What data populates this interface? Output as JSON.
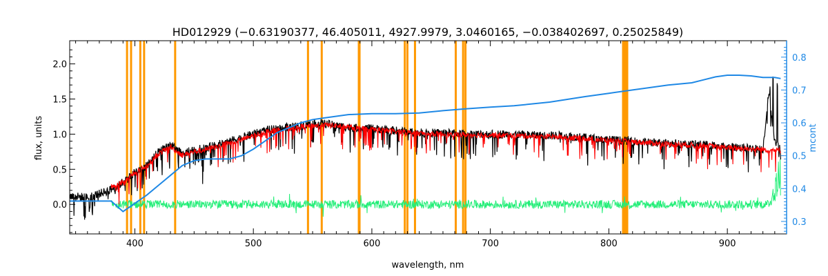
{
  "chart_data": {
    "type": "line",
    "title": "HD012929   (−0.63190377, 46.405011, 4927.9979, 3.0460165, −0.038402697, 0.25025849)",
    "xlabel": "wavelength, nm",
    "ylabel": "flux, units",
    "ylabel_right": "mcont",
    "xlim": [
      345,
      950
    ],
    "ylim": [
      -0.42,
      2.33
    ],
    "ylim_right": [
      0.262,
      0.85
    ],
    "x_ticks": [
      400,
      500,
      600,
      700,
      800,
      900
    ],
    "y_ticks": [
      0.0,
      0.5,
      1.0,
      1.5,
      2.0
    ],
    "y_tick_labels": [
      "0.0",
      "0.5",
      "1.0",
      "1.5",
      "2.0"
    ],
    "y_right_ticks": [
      0.3,
      0.4,
      0.5,
      0.6,
      0.7,
      0.8
    ],
    "y_right_tick_labels": [
      "0.3",
      "0.4",
      "0.5",
      "0.6",
      "0.7",
      "0.8"
    ],
    "grid": false,
    "colors": {
      "observed": "#000000",
      "model": "#ff0000",
      "residual": "#22ee77",
      "continuum": "#1e88e5",
      "masks": "#ff9900",
      "right_axis": "#1e88e5"
    },
    "mask_lines": [
      393.4,
      396.8,
      404.6,
      407.8,
      434.0,
      546.1,
      557.7,
      589.0,
      589.6,
      627.8,
      630.0,
      636.4,
      670.8,
      677.0,
      679.0,
      812.0,
      813.0,
      814.5,
      815.5
    ],
    "continuum": {
      "axis": "right",
      "x": [
        345,
        380,
        390,
        400,
        410,
        420,
        430,
        440,
        450,
        460,
        470,
        480,
        490,
        500,
        510,
        520,
        530,
        540,
        550,
        560,
        570,
        580,
        600,
        620,
        640,
        660,
        680,
        700,
        720,
        750,
        780,
        800,
        820,
        850,
        870,
        890,
        900,
        910,
        920,
        930,
        940,
        945
      ],
      "y": [
        0.362,
        0.362,
        0.33,
        0.355,
        0.38,
        0.41,
        0.44,
        0.47,
        0.485,
        0.49,
        0.49,
        0.49,
        0.5,
        0.52,
        0.545,
        0.57,
        0.585,
        0.6,
        0.61,
        0.615,
        0.62,
        0.625,
        0.628,
        0.628,
        0.63,
        0.637,
        0.643,
        0.648,
        0.652,
        0.663,
        0.68,
        0.69,
        0.7,
        0.715,
        0.722,
        0.74,
        0.745,
        0.745,
        0.743,
        0.738,
        0.738,
        0.735
      ]
    },
    "observed": {
      "axis": "left",
      "x": [
        345,
        360,
        375,
        385,
        392,
        400,
        410,
        420,
        430,
        440,
        450,
        460,
        470,
        480,
        490,
        500,
        510,
        520,
        530,
        540,
        550,
        560,
        570,
        580,
        590,
        600,
        620,
        640,
        660,
        680,
        700,
        720,
        740,
        760,
        780,
        800,
        820,
        840,
        860,
        880,
        900,
        920,
        930,
        935,
        940,
        945
      ],
      "y": [
        0.12,
        0.1,
        0.18,
        0.25,
        0.35,
        0.45,
        0.55,
        0.75,
        0.85,
        0.72,
        0.78,
        0.8,
        0.85,
        0.9,
        0.95,
        1.0,
        1.05,
        1.08,
        1.1,
        1.12,
        1.15,
        1.15,
        1.12,
        1.1,
        1.08,
        1.08,
        1.05,
        1.02,
        1.02,
        1.0,
        1.0,
        1.0,
        0.98,
        0.98,
        0.95,
        0.92,
        0.9,
        0.88,
        0.86,
        0.85,
        0.82,
        0.8,
        0.78,
        1.6,
        0.9,
        0.78
      ]
    },
    "model": {
      "axis": "left",
      "x": [
        380,
        392,
        400,
        410,
        420,
        430,
        440,
        450,
        460,
        470,
        480,
        490,
        500,
        510,
        520,
        530,
        540,
        550,
        560,
        570,
        580,
        590,
        600,
        620,
        640,
        660,
        680,
        700,
        720,
        740,
        760,
        780,
        800,
        820,
        840,
        860,
        880,
        900,
        920,
        945
      ],
      "y": [
        0.25,
        0.33,
        0.45,
        0.55,
        0.72,
        0.82,
        0.7,
        0.75,
        0.78,
        0.83,
        0.88,
        0.92,
        0.98,
        1.03,
        1.06,
        1.08,
        1.1,
        1.12,
        1.13,
        1.12,
        1.1,
        1.08,
        1.07,
        1.04,
        1.01,
        1.0,
        0.99,
        0.99,
        0.98,
        0.97,
        0.96,
        0.94,
        0.91,
        0.89,
        0.87,
        0.85,
        0.84,
        0.81,
        0.79,
        0.77
      ]
    },
    "residual": {
      "axis": "left",
      "x_start": 380,
      "x_end": 945,
      "baseline": 0.0,
      "amplitude": 0.06
    }
  }
}
